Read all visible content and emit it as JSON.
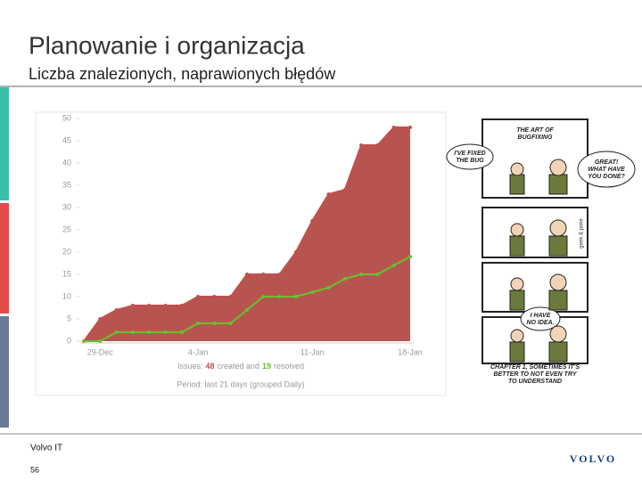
{
  "slide": {
    "title": "Planowanie i organizacja",
    "subtitle": "Liczba znalezionych, naprawionych błędów",
    "footer": "Volvo IT",
    "page": "56",
    "logo": "VOLVO"
  },
  "chart_data": {
    "type": "area",
    "categories": [
      null,
      "29-Dec",
      null,
      null,
      null,
      null,
      null,
      "4-Jan",
      null,
      null,
      null,
      null,
      null,
      null,
      "11-Jan",
      null,
      null,
      null,
      null,
      null,
      "18-Jan"
    ],
    "series": [
      {
        "name": "created",
        "color": "#c0504d",
        "values": [
          0,
          5,
          7,
          8,
          8,
          8,
          8,
          10,
          10,
          10,
          15,
          15,
          15,
          20,
          27,
          33,
          34,
          44,
          44,
          48,
          48
        ]
      },
      {
        "name": "resolved",
        "color": "#66c22e",
        "values": [
          0,
          0,
          2,
          2,
          2,
          2,
          2,
          4,
          4,
          4,
          7,
          10,
          10,
          10,
          11,
          12,
          14,
          15,
          15,
          17,
          19
        ]
      }
    ],
    "ylim": [
      0,
      50
    ],
    "yticks": [
      0,
      5,
      10,
      15,
      20,
      25,
      30,
      35,
      40,
      45,
      50
    ],
    "caption": {
      "prefix": "Issues:",
      "created": "48",
      "middle": "created and",
      "resolved": "19",
      "suffix": "resolved",
      "period": "Period: last 21 days (grouped Daily)"
    }
  },
  "comic": {
    "title": [
      "THE ART OF",
      "BUGFIXING"
    ],
    "bubble1": [
      "I'VE FIXED",
      "THE BUG"
    ],
    "bubble2": [
      "GREAT!",
      "WHAT HAVE",
      "YOU DONE?"
    ],
    "bubble3": [
      "I HAVE",
      "NO IDEA."
    ],
    "credit": "geek & poke",
    "caption": [
      "CHAPTER 1, SOMETIMES IT'S",
      "BETTER TO NOT EVEN TRY",
      "TO UNDERSTAND"
    ]
  }
}
